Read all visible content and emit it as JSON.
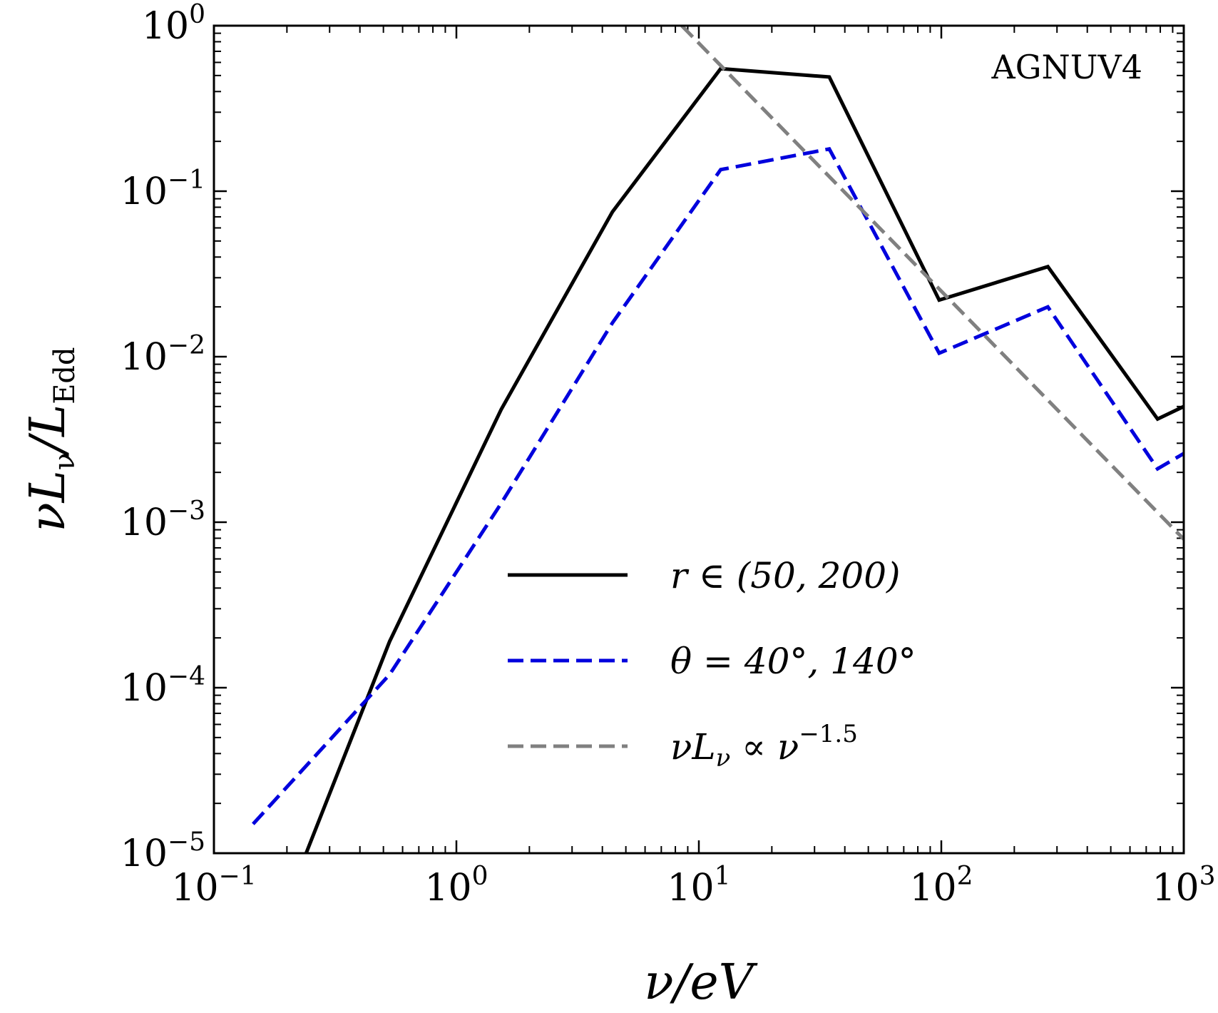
{
  "chart_data": {
    "type": "line",
    "x_scale": "log",
    "y_scale": "log",
    "xlim": [
      0.1,
      1000
    ],
    "ylim": [
      1e-05,
      1
    ],
    "x_ticks": [
      {
        "value": 0.1,
        "base": "10",
        "exp": "−1"
      },
      {
        "value": 1,
        "base": "10",
        "exp": "0"
      },
      {
        "value": 10,
        "base": "10",
        "exp": "1"
      },
      {
        "value": 100,
        "base": "10",
        "exp": "2"
      },
      {
        "value": 1000,
        "base": "10",
        "exp": "3"
      }
    ],
    "y_ticks": [
      {
        "value": 1,
        "base": "10",
        "exp": "0"
      },
      {
        "value": 0.1,
        "base": "10",
        "exp": "−1"
      },
      {
        "value": 0.01,
        "base": "10",
        "exp": "−2"
      },
      {
        "value": 0.001,
        "base": "10",
        "exp": "−3"
      },
      {
        "value": 0.0001,
        "base": "10",
        "exp": "−4"
      },
      {
        "value": 1e-05,
        "base": "10",
        "exp": "−5"
      }
    ],
    "xlabel": {
      "main": "ν/eV"
    },
    "ylabel": {
      "main": "νL",
      "sub1": "ν",
      "slash": "/L",
      "sub2": "Edd"
    },
    "annotation": "AGNUV4",
    "legend_position": "center-right",
    "series": [
      {
        "name": "r ∈ (50, 200)",
        "style": "solid",
        "color": "#000000",
        "x": [
          0.24,
          0.53,
          1.53,
          4.4,
          12.3,
          34.5,
          98,
          275,
          780,
          1000
        ],
        "y": [
          1e-05,
          0.00019,
          0.0048,
          0.075,
          0.55,
          0.49,
          0.022,
          0.035,
          0.0042,
          0.005
        ]
      },
      {
        "name": "θ = 40°, 140°",
        "style": "dashed",
        "color": "#0000dd",
        "x": [
          0.145,
          0.53,
          1.53,
          4.4,
          12.3,
          34.5,
          98,
          275,
          780,
          1000
        ],
        "y": [
          1.5e-05,
          0.00012,
          0.0013,
          0.016,
          0.135,
          0.18,
          0.0105,
          0.02,
          0.0021,
          0.0026
        ]
      },
      {
        "name": "νL",
        "name_sub": "ν",
        "name_rest": " ∝ ν",
        "name_sup": "−1.5",
        "style": "dashed",
        "color": "#808080",
        "x": [
          8.5,
          1000
        ],
        "y": [
          1.0,
          0.00079
        ]
      }
    ]
  }
}
